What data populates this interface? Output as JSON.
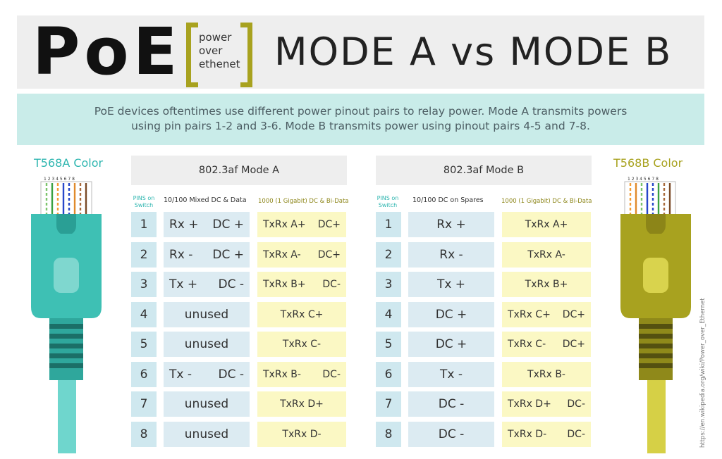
{
  "header": {
    "poe": "PoE",
    "bracket_lines": [
      "power",
      "over",
      "ethenet"
    ],
    "title": "MODE A vs MODE B"
  },
  "description": {
    "line1": "PoE devices oftentimes use different power pinout pairs to relay power. Mode A transmits powers",
    "line2": "using pin pairs 1-2 and 3-6. Mode B transmits power using pinout pairs 4-5 and 7-8."
  },
  "cables": {
    "a": {
      "label": "T568A Color",
      "color": "#2fb6b0",
      "pins": "1 2 3 4 5 6 7 8"
    },
    "b": {
      "label": "T568B Color",
      "color": "#a8a21f",
      "pins": "1 2 3 4 5 6 7 8"
    }
  },
  "mode_a": {
    "title": "802.3af Mode A",
    "headers": {
      "pins": "PINS on Switch",
      "mixed": "10/100 Mixed DC & Data",
      "gigabit": "1000 (1 Gigabit) DC & Bi-Data"
    },
    "rows": [
      {
        "pin": "1",
        "m1": "Rx +",
        "m2": "DC +",
        "g1": "TxRx A+",
        "g2": "DC+"
      },
      {
        "pin": "2",
        "m1": "Rx -",
        "m2": "DC +",
        "g1": "TxRx A-",
        "g2": "DC+"
      },
      {
        "pin": "3",
        "m1": "Tx +",
        "m2": "DC -",
        "g1": "TxRx B+",
        "g2": "DC-"
      },
      {
        "pin": "4",
        "m1": "unused",
        "m2": "",
        "g1": "TxRx C+",
        "g2": ""
      },
      {
        "pin": "5",
        "m1": "unused",
        "m2": "",
        "g1": "TxRx C-",
        "g2": ""
      },
      {
        "pin": "6",
        "m1": "Tx -",
        "m2": "DC -",
        "g1": "TxRx B-",
        "g2": "DC-"
      },
      {
        "pin": "7",
        "m1": "unused",
        "m2": "",
        "g1": "TxRx D+",
        "g2": ""
      },
      {
        "pin": "8",
        "m1": "unused",
        "m2": "",
        "g1": "TxRx D-",
        "g2": ""
      }
    ]
  },
  "mode_b": {
    "title": "802.3af Mode B",
    "headers": {
      "pins": "PINS on Switch",
      "spares": "10/100 DC on Spares",
      "gigabit": "1000 (1 Gigabit) DC & Bi-Data"
    },
    "rows": [
      {
        "pin": "1",
        "s": "Rx +",
        "g1": "TxRx A+",
        "g2": ""
      },
      {
        "pin": "2",
        "s": "Rx -",
        "g1": "TxRx A-",
        "g2": ""
      },
      {
        "pin": "3",
        "s": "Tx +",
        "g1": "TxRx B+",
        "g2": ""
      },
      {
        "pin": "4",
        "s": "DC +",
        "g1": "TxRx C+",
        "g2": "DC+"
      },
      {
        "pin": "5",
        "s": "DC +",
        "g1": "TxRx C-",
        "g2": "DC+"
      },
      {
        "pin": "6",
        "s": "Tx -",
        "g1": "TxRx B-",
        "g2": ""
      },
      {
        "pin": "7",
        "s": "DC -",
        "g1": "TxRx D+",
        "g2": "DC-"
      },
      {
        "pin": "8",
        "s": "DC -",
        "g1": "TxRx D-",
        "g2": "DC-"
      }
    ]
  },
  "credit": "https://en.wikipedia.org/wiki/Power_over_Ethernet"
}
